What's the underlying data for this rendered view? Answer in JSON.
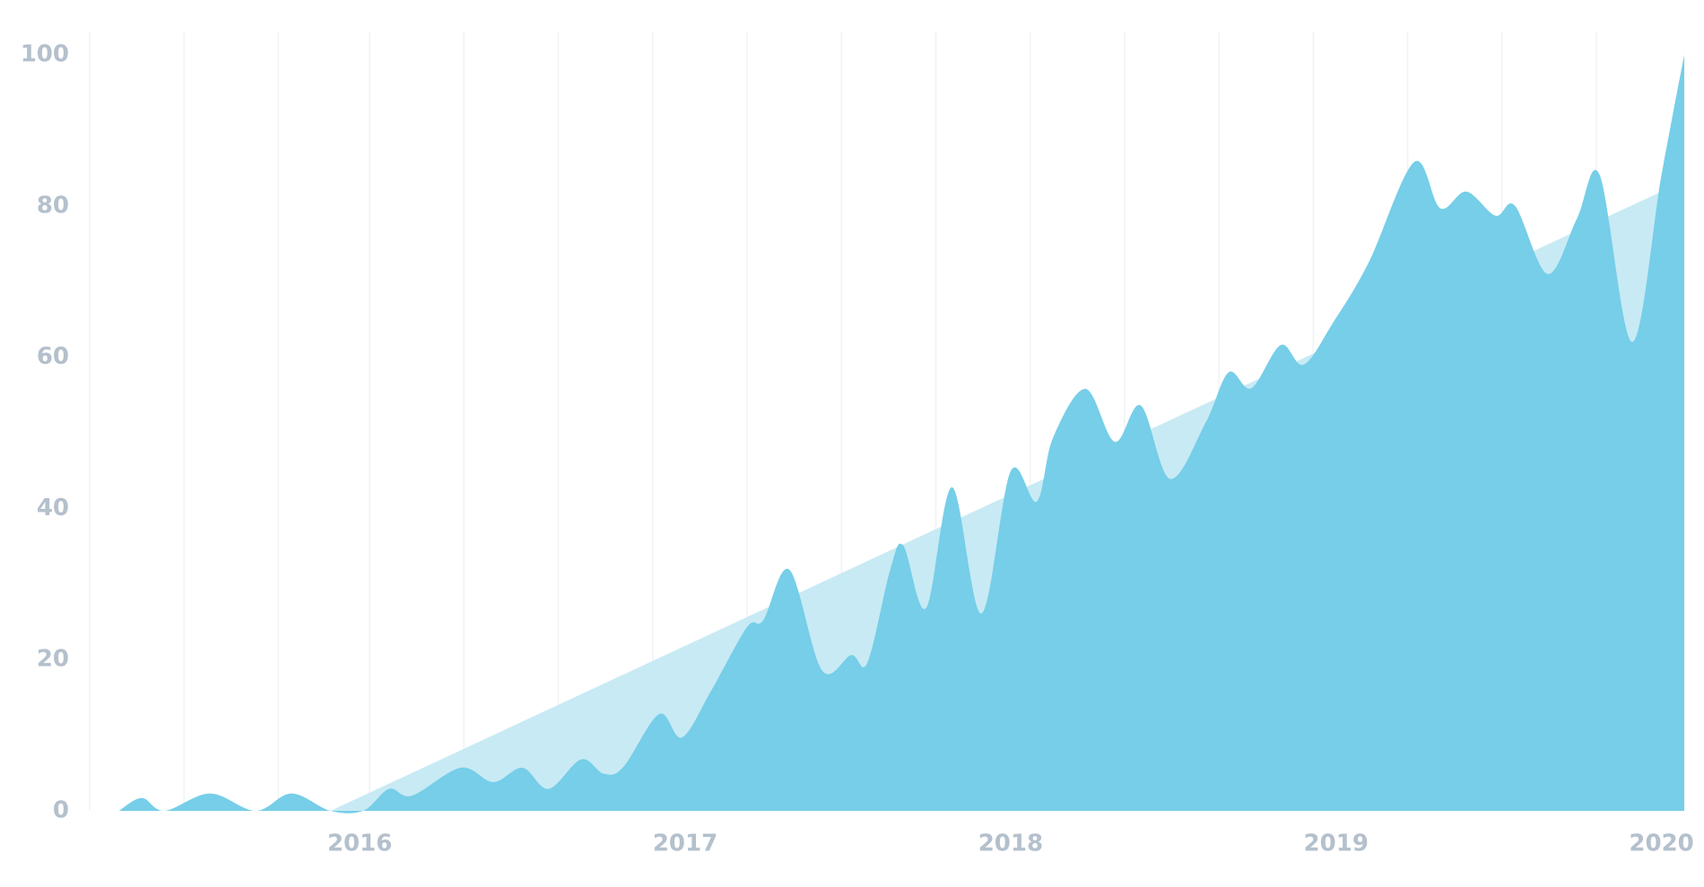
{
  "chart_data": {
    "type": "area",
    "xlim": [
      2015.17,
      2020.07
    ],
    "xticks": [
      2016,
      2017,
      2018,
      2019,
      2020
    ],
    "xgrid": [
      2015.17,
      2015.46,
      2015.75,
      2016.03,
      2016.32,
      2016.61,
      2016.9,
      2017.19,
      2017.48,
      2017.77,
      2018.06,
      2018.35,
      2018.64,
      2018.93,
      2019.22,
      2019.51,
      2019.8
    ],
    "ylim": [
      0,
      100
    ],
    "yticks": [
      0,
      20,
      40,
      60,
      80,
      100
    ],
    "series": [
      {
        "color": "#c8eaf4",
        "smooth": false,
        "x": [
          2015.91,
          2020.07
        ],
        "values": [
          0,
          83.3
        ]
      },
      {
        "color": "#76cee8",
        "smooth": true,
        "x": [
          2015.26,
          2015.33,
          2015.4,
          2015.54,
          2015.68,
          2015.79,
          2015.91,
          2016.01,
          2016.09,
          2016.16,
          2016.31,
          2016.41,
          2016.5,
          2016.58,
          2016.68,
          2016.75,
          2016.81,
          2016.92,
          2016.99,
          2017.08,
          2017.19,
          2017.24,
          2017.32,
          2017.42,
          2017.51,
          2017.56,
          2017.63,
          2017.67,
          2017.74,
          2017.82,
          2017.91,
          2018.0,
          2018.08,
          2018.13,
          2018.23,
          2018.32,
          2018.4,
          2018.49,
          2018.6,
          2018.67,
          2018.74,
          2018.83,
          2018.9,
          2018.99,
          2019.1,
          2019.24,
          2019.32,
          2019.4,
          2019.49,
          2019.55,
          2019.65,
          2019.74,
          2019.81,
          2019.91,
          2020.0,
          2020.07
        ],
        "values": [
          0,
          1.7,
          0,
          2.3,
          0,
          2.3,
          0,
          0,
          2.9,
          2.0,
          5.7,
          3.8,
          5.7,
          2.9,
          6.8,
          4.9,
          5.8,
          12.8,
          9.7,
          15.9,
          24.3,
          25.2,
          31.9,
          18.6,
          20.6,
          19.6,
          31.9,
          35.1,
          26.8,
          42.8,
          26.1,
          44.9,
          40.9,
          49.3,
          55.8,
          48.8,
          53.6,
          43.9,
          51.4,
          58.0,
          55.9,
          61.6,
          59.0,
          64.5,
          72.5,
          85.8,
          79.7,
          81.9,
          78.7,
          80.0,
          71.0,
          78.3,
          84.1,
          62.0,
          84.1,
          100
        ]
      }
    ]
  }
}
